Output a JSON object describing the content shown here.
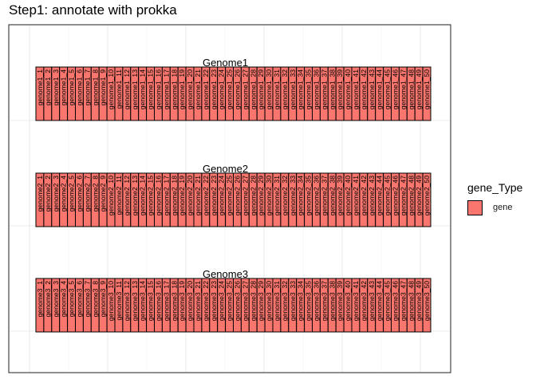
{
  "chart_data": {
    "type": "gene-map",
    "title": "Step1: annotate with prokka",
    "legend": {
      "title": "gene_Type",
      "position": "right",
      "entries": [
        {
          "label": "gene",
          "color": "#f8766d"
        }
      ]
    },
    "grid": true,
    "genomes": [
      {
        "name": "Genome1",
        "gene_prefix": "genome1",
        "gene_count": 50
      },
      {
        "name": "Genome2",
        "gene_prefix": "genome2",
        "gene_count": 50
      },
      {
        "name": "Genome3",
        "gene_prefix": "genome3",
        "gene_count": 50
      }
    ],
    "gene_fill": "#f8766d",
    "gene_border": "#000000"
  }
}
